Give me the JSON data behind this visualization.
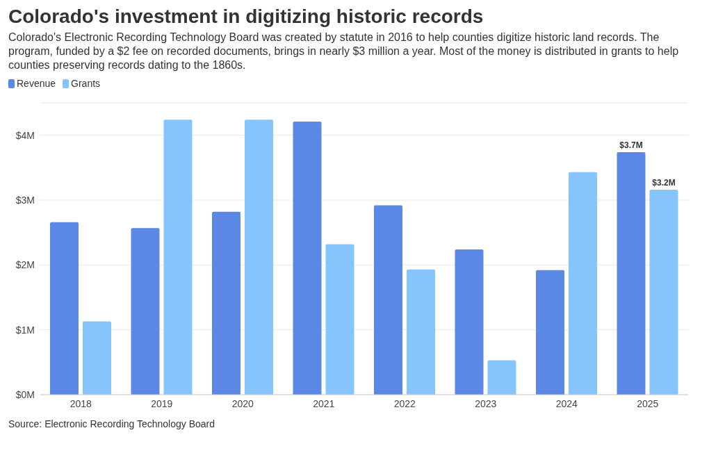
{
  "chart_data": {
    "type": "bar",
    "title": "Colorado's investment in digitizing historic records",
    "subtitle": "Colorado's Electronic Recording Technology Board was created by statute in 2016 to help counties digitize historic land records. The program, funded by a $2 fee on recorded documents, brings in nearly $3 million a year. Most of the money is distributed in grants to help counties preserving records dating to the 1860s.",
    "categories": [
      "2018",
      "2019",
      "2020",
      "2021",
      "2022",
      "2023",
      "2024",
      "2025"
    ],
    "series": [
      {
        "name": "Revenue",
        "color": "#5b87e5",
        "values": [
          2.66,
          2.57,
          2.82,
          4.21,
          2.92,
          2.24,
          1.92,
          3.74
        ],
        "value_labels": [
          null,
          null,
          null,
          null,
          null,
          null,
          null,
          "$3.7M"
        ]
      },
      {
        "name": "Grants",
        "color": "#85c5fc",
        "values": [
          1.13,
          4.24,
          4.24,
          2.32,
          1.93,
          0.53,
          3.43,
          3.16
        ],
        "value_labels": [
          null,
          null,
          null,
          null,
          null,
          null,
          null,
          "$3.2M"
        ]
      }
    ],
    "ylim": [
      0,
      4.5
    ],
    "yticks": [
      {
        "value": 0,
        "label": "$0M"
      },
      {
        "value": 1,
        "label": "$1M"
      },
      {
        "value": 2,
        "label": "$2M"
      },
      {
        "value": 3,
        "label": "$3M"
      },
      {
        "value": 4,
        "label": "$4M"
      }
    ],
    "grid": "y",
    "legend": "top left",
    "annotations": [
      "Source: Electronic Recording Technology Board"
    ]
  }
}
